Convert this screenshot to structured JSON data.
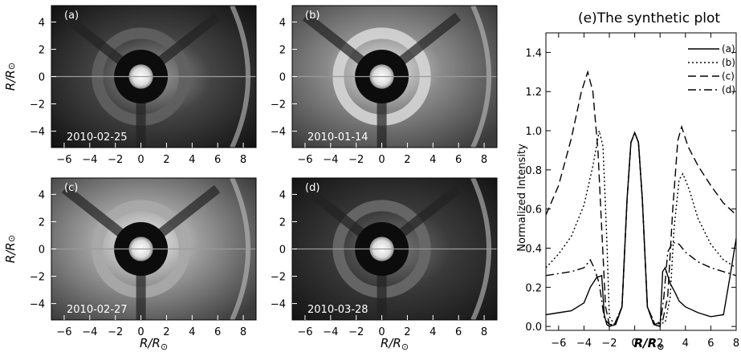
{
  "figure": {
    "image_panels": [
      {
        "label": "(a)",
        "date": "2010-02-25",
        "brightness": 0.55,
        "ring_brightness": 0.2
      },
      {
        "label": "(b)",
        "date": "2010-01-14",
        "brightness": 0.75,
        "ring_brightness": 0.85
      },
      {
        "label": "(c)",
        "date": "2010-02-27",
        "brightness": 0.85,
        "ring_brightness": 0.6
      },
      {
        "label": "(d)",
        "date": "2010-03-28",
        "brightness": 0.35,
        "ring_brightness": 0.25
      }
    ],
    "image_axes": {
      "xlabel": "R/R",
      "ylabel": "R/R",
      "sun_symbol": "⊙",
      "xticks": [
        "-6",
        "-4",
        "-2",
        "0",
        "2",
        "4",
        "6",
        "8"
      ],
      "yticks": [
        "4",
        "2",
        "0",
        "-2",
        "-4"
      ],
      "xlim": [
        -7,
        9
      ],
      "ylim": [
        -5.2,
        5.2
      ]
    }
  },
  "chart_data": {
    "type": "line",
    "title": "(e)The synthetic plot",
    "xlabel": "R/R",
    "ylabel": "Normalized Intensity",
    "xlim": [
      -7,
      8
    ],
    "ylim": [
      -0.02,
      1.5
    ],
    "xticks": [
      "-6",
      "-4",
      "-2",
      "0",
      "2",
      "4",
      "6",
      "8"
    ],
    "yticks": [
      "0.0",
      "0.2",
      "0.4",
      "0.6",
      "0.8",
      "1.0",
      "1.2",
      "1.4"
    ],
    "legend": "top-right",
    "series": [
      {
        "name": "(a)",
        "dash": "none",
        "points": [
          [
            -7,
            0.06
          ],
          [
            -6,
            0.07
          ],
          [
            -5,
            0.08
          ],
          [
            -4,
            0.12
          ],
          [
            -3.5,
            0.2
          ],
          [
            -3,
            0.25
          ],
          [
            -2.6,
            0.26
          ],
          [
            -2.4,
            0.06
          ],
          [
            -2.2,
            0.01
          ],
          [
            -2.0,
            0.0
          ],
          [
            -1.5,
            0.01
          ],
          [
            -1.0,
            0.1
          ],
          [
            -0.6,
            0.65
          ],
          [
            -0.3,
            0.94
          ],
          [
            0,
            0.99
          ],
          [
            0.3,
            0.94
          ],
          [
            0.6,
            0.65
          ],
          [
            1.0,
            0.1
          ],
          [
            1.5,
            0.01
          ],
          [
            2.0,
            0.0
          ],
          [
            2.2,
            0.28
          ],
          [
            2.4,
            0.3
          ],
          [
            2.8,
            0.22
          ],
          [
            3.2,
            0.17
          ],
          [
            3.5,
            0.13
          ],
          [
            4,
            0.1
          ],
          [
            5,
            0.07
          ],
          [
            6,
            0.05
          ],
          [
            7,
            0.06
          ],
          [
            7.5,
            0.25
          ],
          [
            8,
            0.45
          ]
        ]
      },
      {
        "name": "(b)",
        "dash": "2,3",
        "points": [
          [
            -7,
            0.3
          ],
          [
            -6,
            0.37
          ],
          [
            -5,
            0.46
          ],
          [
            -4,
            0.62
          ],
          [
            -3.3,
            0.82
          ],
          [
            -2.8,
            1.0
          ],
          [
            -2.5,
            0.92
          ],
          [
            -2.2,
            0.45
          ],
          [
            -2.0,
            0.05
          ],
          [
            -1.6,
            0.01
          ],
          [
            -1.0,
            0.1
          ],
          [
            -0.6,
            0.65
          ],
          [
            -0.3,
            0.94
          ],
          [
            0,
            0.99
          ],
          [
            0.3,
            0.94
          ],
          [
            0.6,
            0.65
          ],
          [
            1.0,
            0.1
          ],
          [
            1.6,
            0.01
          ],
          [
            2.4,
            0.02
          ],
          [
            2.8,
            0.15
          ],
          [
            3.1,
            0.5
          ],
          [
            3.5,
            0.75
          ],
          [
            3.8,
            0.78
          ],
          [
            4.3,
            0.7
          ],
          [
            5,
            0.55
          ],
          [
            6,
            0.42
          ],
          [
            7,
            0.34
          ],
          [
            8,
            0.3
          ]
        ]
      },
      {
        "name": "(c)",
        "dash": "10,5",
        "points": [
          [
            -7,
            0.57
          ],
          [
            -6,
            0.72
          ],
          [
            -5,
            0.96
          ],
          [
            -4.2,
            1.2
          ],
          [
            -3.7,
            1.3
          ],
          [
            -3.3,
            1.2
          ],
          [
            -2.9,
            0.9
          ],
          [
            -2.6,
            0.5
          ],
          [
            -2.3,
            0.1
          ],
          [
            -2.0,
            0.01
          ],
          [
            -1.6,
            0.01
          ],
          [
            -1.0,
            0.1
          ],
          [
            -0.6,
            0.65
          ],
          [
            -0.3,
            0.94
          ],
          [
            0,
            0.99
          ],
          [
            0.3,
            0.94
          ],
          [
            0.6,
            0.65
          ],
          [
            1.0,
            0.1
          ],
          [
            1.6,
            0.01
          ],
          [
            2.2,
            0.03
          ],
          [
            2.6,
            0.15
          ],
          [
            3.0,
            0.6
          ],
          [
            3.4,
            0.95
          ],
          [
            3.7,
            1.02
          ],
          [
            4.2,
            0.92
          ],
          [
            5,
            0.82
          ],
          [
            6,
            0.72
          ],
          [
            7,
            0.63
          ],
          [
            8,
            0.57
          ]
        ]
      },
      {
        "name": "(d)",
        "dash": "10,4,2,4",
        "points": [
          [
            -7,
            0.26
          ],
          [
            -6,
            0.27
          ],
          [
            -5,
            0.28
          ],
          [
            -4,
            0.3
          ],
          [
            -3.5,
            0.34
          ],
          [
            -3.2,
            0.3
          ],
          [
            -2.8,
            0.22
          ],
          [
            -2.4,
            0.04
          ],
          [
            -2.0,
            0.01
          ],
          [
            -1.5,
            0.01
          ],
          [
            -1.0,
            0.1
          ],
          [
            -0.6,
            0.65
          ],
          [
            -0.3,
            0.94
          ],
          [
            0,
            0.99
          ],
          [
            0.3,
            0.94
          ],
          [
            0.6,
            0.65
          ],
          [
            1.0,
            0.1
          ],
          [
            1.5,
            0.01
          ],
          [
            2.0,
            0.0
          ],
          [
            2.3,
            0.15
          ],
          [
            2.6,
            0.38
          ],
          [
            3.0,
            0.43
          ],
          [
            3.5,
            0.42
          ],
          [
            4,
            0.38
          ],
          [
            5,
            0.33
          ],
          [
            6,
            0.3
          ],
          [
            7,
            0.28
          ],
          [
            8,
            0.26
          ]
        ]
      }
    ]
  }
}
